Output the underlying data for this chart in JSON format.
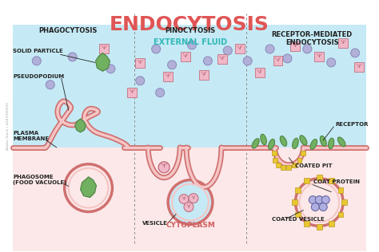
{
  "title": "ENDOCYTOSIS",
  "title_color": "#e05555",
  "title_fontsize": 18,
  "bg_color": "#ffffff",
  "external_fluid_color": "#c5eaf5",
  "cytoplasm_color": "#fce8e8",
  "membrane_outer": "#d07070",
  "membrane_inner": "#f5c5c5",
  "section_labels": [
    "PHAGOCYTOSIS",
    "PINOCYTOSIS",
    "RECEPTOR-MEDIATED\nENDOCYTOSIS"
  ],
  "external_fluid_label": "EXTERNAL FLUID",
  "cytoplasm_label": "CYTOPLASM",
  "purple_sphere_color": "#9090c0",
  "purple_sphere_face": "#b0b0d8",
  "pink_cube_face": "#f0b8c8",
  "pink_cube_edge": "#c07080",
  "green_color": "#70b060",
  "green_edge": "#4a8040",
  "yellow_color": "#e8c830",
  "yellow_edge": "#b89820",
  "section_div_color": "#888888",
  "label_fontsize": 5.0,
  "sub_label_fontsize": 6.0,
  "watermark": "Adobe Stock | #443392693"
}
